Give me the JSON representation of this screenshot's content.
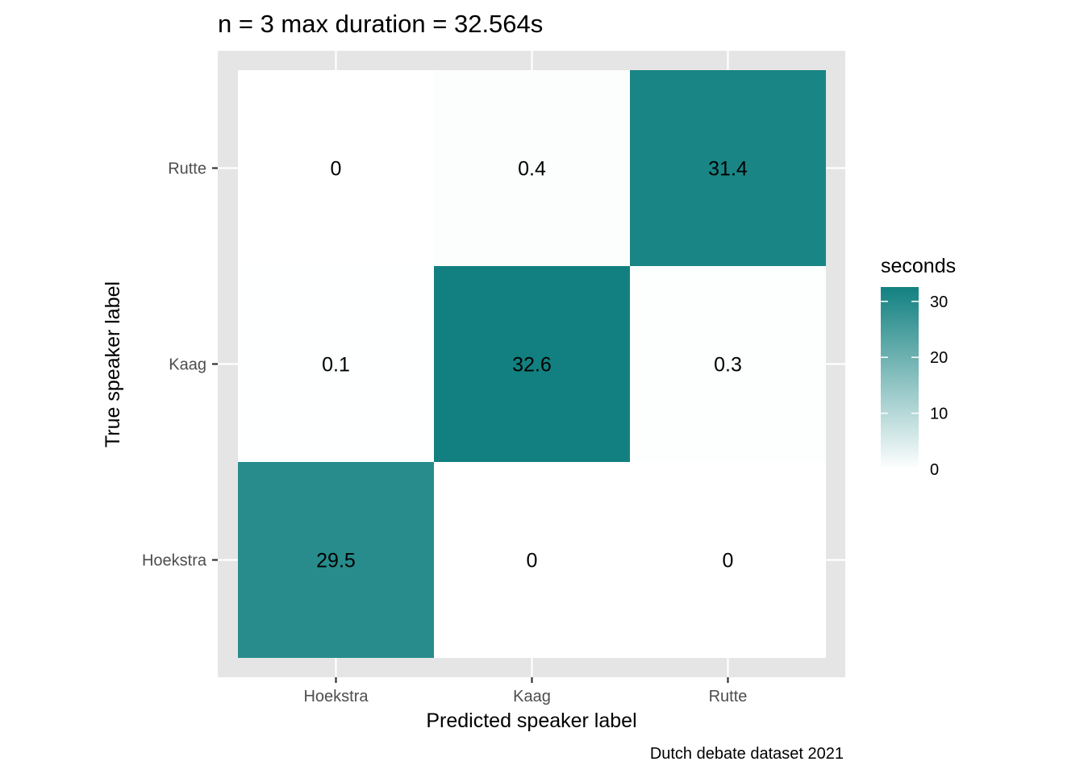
{
  "chart_data": {
    "type": "heatmap",
    "title": "n = 3 max duration = 32.564s",
    "xlabel": "Predicted speaker label",
    "ylabel": "True speaker label",
    "x_categories": [
      "Hoekstra",
      "Kaag",
      "Rutte"
    ],
    "y_categories": [
      "Hoekstra",
      "Kaag",
      "Rutte"
    ],
    "cells": [
      {
        "x": "Hoekstra",
        "y": "Rutte",
        "value": 0,
        "label": "0"
      },
      {
        "x": "Kaag",
        "y": "Rutte",
        "value": 0.4,
        "label": "0.4"
      },
      {
        "x": "Rutte",
        "y": "Rutte",
        "value": 31.4,
        "label": "31.4"
      },
      {
        "x": "Hoekstra",
        "y": "Kaag",
        "value": 0.1,
        "label": "0.1"
      },
      {
        "x": "Kaag",
        "y": "Kaag",
        "value": 32.6,
        "label": "32.6"
      },
      {
        "x": "Rutte",
        "y": "Kaag",
        "value": 0.3,
        "label": "0.3"
      },
      {
        "x": "Hoekstra",
        "y": "Hoekstra",
        "value": 29.5,
        "label": "29.5"
      },
      {
        "x": "Kaag",
        "y": "Hoekstra",
        "value": 0,
        "label": "0"
      },
      {
        "x": "Rutte",
        "y": "Hoekstra",
        "value": 0,
        "label": "0"
      }
    ],
    "legend": {
      "title": "seconds",
      "min": 0,
      "max": 32.564,
      "ticks": [
        0,
        10,
        20,
        30
      ],
      "tick_labels": [
        "0",
        "10",
        "20",
        "30"
      ],
      "position": "right"
    },
    "colors": {
      "low": "#ffffff",
      "high": "#128080",
      "panel_background": "#e5e5e5",
      "gridline": "#ffffff"
    },
    "grid": true,
    "caption": "Dutch debate dataset 2021"
  }
}
